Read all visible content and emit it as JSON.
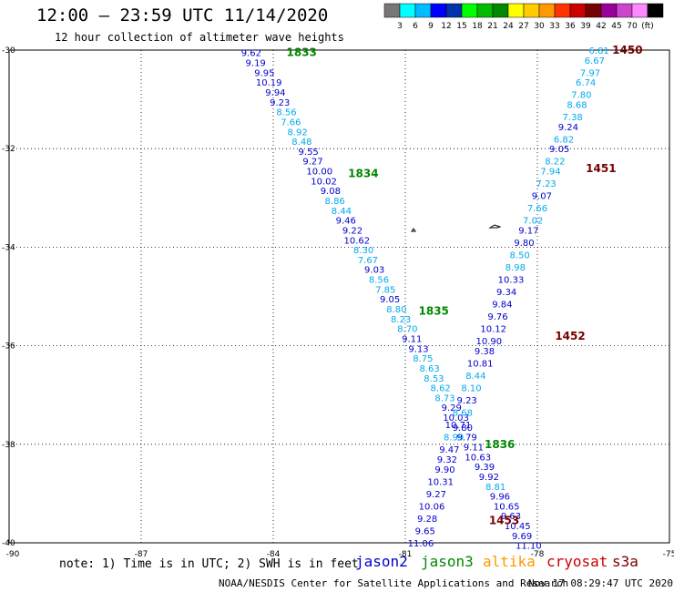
{
  "header": {
    "title": "12:00 — 23:59 UTC 11/14/2020",
    "subtitle": "12 hour collection of altimeter wave heights"
  },
  "legend": {
    "colors": [
      "#777777",
      "#00ffff",
      "#00bbff",
      "#0000ff",
      "#0033aa",
      "#00ff00",
      "#00bb00",
      "#008800",
      "#ffff00",
      "#ffcc00",
      "#ff9900",
      "#ff3300",
      "#cc0000",
      "#770000",
      "#990099",
      "#cc44cc",
      "#ff88ff",
      "#000000"
    ],
    "labels": [
      "3",
      "6",
      "9",
      "12",
      "15",
      "18",
      "21",
      "24",
      "27",
      "30",
      "33",
      "36",
      "39",
      "42",
      "45",
      "70",
      "(ft)"
    ]
  },
  "footer": {
    "note": "note:  1) Time is in UTC;  2) SWH is in feet",
    "satellites": [
      {
        "name": "jason2",
        "color": "#0000cc"
      },
      {
        "name": "jason3",
        "color": "#008800"
      },
      {
        "name": "altika",
        "color": "#ff9900"
      },
      {
        "name": "cryosat",
        "color": "#cc0000"
      },
      {
        "name": "s3a",
        "color": "#770000"
      }
    ],
    "credit": "NOAA/NESDIS Center for Satellite Applications and Research",
    "timestamp": "Nov 17 08:29:47 UTC 2020"
  },
  "chart_data": {
    "type": "scatter",
    "xlim": [
      -90,
      -75
    ],
    "ylim": [
      -40,
      -30
    ],
    "x_ticks": [
      -90,
      -87,
      -84,
      -81,
      -78,
      -75
    ],
    "y_ticks": [
      -30,
      -32,
      -34,
      -36,
      -38,
      -40
    ],
    "grid": true,
    "labels": [
      {
        "text": "1833",
        "x": -83.7,
        "y": -30.05,
        "color": "#008800"
      },
      {
        "text": "1834",
        "x": -82.3,
        "y": -32.5,
        "color": "#008800"
      },
      {
        "text": "1835",
        "x": -80.7,
        "y": -35.3,
        "color": "#008800"
      },
      {
        "text": "1836",
        "x": -79.2,
        "y": -38.0,
        "color": "#008800"
      },
      {
        "text": "1450",
        "x": -76.3,
        "y": -30.0,
        "color": "#770000"
      },
      {
        "text": "1451",
        "x": -76.9,
        "y": -32.4,
        "color": "#770000"
      },
      {
        "text": "1452",
        "x": -77.6,
        "y": -35.8,
        "color": "#770000"
      },
      {
        "text": "1453",
        "x": -79.1,
        "y": -39.55,
        "color": "#770000"
      }
    ],
    "series": [
      {
        "name": "jason3",
        "points": [
          {
            "x": -84.5,
            "y": -30.05,
            "v": 9.62,
            "c": "#0000cc"
          },
          {
            "x": -84.4,
            "y": -30.25,
            "v": 9.19,
            "c": "#0000cc"
          },
          {
            "x": -84.2,
            "y": -30.45,
            "v": 9.95,
            "c": "#0000cc"
          },
          {
            "x": -84.1,
            "y": -30.65,
            "v": 10.19,
            "c": "#0000cc"
          },
          {
            "x": -83.95,
            "y": -30.85,
            "v": 9.94,
            "c": "#0000cc"
          },
          {
            "x": -83.85,
            "y": -31.05,
            "v": 9.23,
            "c": "#0000cc"
          },
          {
            "x": -83.7,
            "y": -31.25,
            "v": 8.56,
            "c": "#00aaee"
          },
          {
            "x": -83.6,
            "y": -31.45,
            "v": 7.66,
            "c": "#00aaee"
          },
          {
            "x": -83.45,
            "y": -31.65,
            "v": 8.92,
            "c": "#00aaee"
          },
          {
            "x": -83.35,
            "y": -31.85,
            "v": 8.48,
            "c": "#00aaee"
          },
          {
            "x": -83.2,
            "y": -32.05,
            "v": 9.55,
            "c": "#0000cc"
          },
          {
            "x": -83.1,
            "y": -32.25,
            "v": 9.27,
            "c": "#0000cc"
          },
          {
            "x": -82.95,
            "y": -32.45,
            "v": 10.0,
            "c": "#0000cc"
          },
          {
            "x": -82.85,
            "y": -32.65,
            "v": 10.02,
            "c": "#0000cc"
          },
          {
            "x": -82.7,
            "y": -32.85,
            "v": 9.08,
            "c": "#0000cc"
          },
          {
            "x": -82.6,
            "y": -33.05,
            "v": 8.86,
            "c": "#00aaee"
          },
          {
            "x": -82.45,
            "y": -33.25,
            "v": 8.44,
            "c": "#00aaee"
          },
          {
            "x": -82.35,
            "y": -33.45,
            "v": 9.46,
            "c": "#0000cc"
          },
          {
            "x": -82.2,
            "y": -33.65,
            "v": 9.22,
            "c": "#0000cc"
          },
          {
            "x": -82.1,
            "y": -33.85,
            "v": 10.62,
            "c": "#0000cc"
          },
          {
            "x": -81.95,
            "y": -34.05,
            "v": 8.3,
            "c": "#00aaee"
          },
          {
            "x": -81.85,
            "y": -34.25,
            "v": 7.67,
            "c": "#00aaee"
          },
          {
            "x": -81.7,
            "y": -34.45,
            "v": 9.03,
            "c": "#0000cc"
          },
          {
            "x": -81.6,
            "y": -34.65,
            "v": 8.56,
            "c": "#00aaee"
          },
          {
            "x": -81.45,
            "y": -34.85,
            "v": 7.85,
            "c": "#00aaee"
          },
          {
            "x": -81.35,
            "y": -35.05,
            "v": 9.05,
            "c": "#0000cc"
          },
          {
            "x": -81.2,
            "y": -35.25,
            "v": 8.8,
            "c": "#00aaee"
          },
          {
            "x": -81.1,
            "y": -35.45,
            "v": 8.23,
            "c": "#00aaee"
          },
          {
            "x": -80.95,
            "y": -35.65,
            "v": 8.7,
            "c": "#00aaee"
          },
          {
            "x": -80.85,
            "y": -35.85,
            "v": 9.11,
            "c": "#0000cc"
          },
          {
            "x": -80.7,
            "y": -36.05,
            "v": 9.13,
            "c": "#0000cc"
          },
          {
            "x": -80.6,
            "y": -36.25,
            "v": 8.75,
            "c": "#00aaee"
          },
          {
            "x": -80.45,
            "y": -36.45,
            "v": 8.63,
            "c": "#00aaee"
          },
          {
            "x": -80.35,
            "y": -36.65,
            "v": 8.53,
            "c": "#00aaee"
          },
          {
            "x": -80.2,
            "y": -36.85,
            "v": 8.62,
            "c": "#00aaee"
          },
          {
            "x": -80.1,
            "y": -37.05,
            "v": 8.73,
            "c": "#00aaee"
          },
          {
            "x": -79.95,
            "y": -37.25,
            "v": 9.29,
            "c": "#0000cc"
          },
          {
            "x": -79.85,
            "y": -37.45,
            "v": 10.03,
            "c": "#0000cc"
          },
          {
            "x": -79.7,
            "y": -37.65,
            "v": 9.8,
            "c": "#0000cc"
          },
          {
            "x": -79.6,
            "y": -37.85,
            "v": 9.79,
            "c": "#0000cc"
          },
          {
            "x": -79.45,
            "y": -38.05,
            "v": 9.11,
            "c": "#0000cc"
          },
          {
            "x": -79.35,
            "y": -38.25,
            "v": 10.63,
            "c": "#0000cc"
          },
          {
            "x": -79.2,
            "y": -38.45,
            "v": 9.39,
            "c": "#0000cc"
          },
          {
            "x": -79.1,
            "y": -38.65,
            "v": 9.92,
            "c": "#0000cc"
          },
          {
            "x": -78.95,
            "y": -38.85,
            "v": 8.81,
            "c": "#00aaee"
          },
          {
            "x": -78.85,
            "y": -39.05,
            "v": 9.96,
            "c": "#0000cc"
          },
          {
            "x": -78.7,
            "y": -39.25,
            "v": 10.65,
            "c": "#0000cc"
          },
          {
            "x": -78.6,
            "y": -39.45,
            "v": 9.63,
            "c": "#0000cc"
          },
          {
            "x": -78.45,
            "y": -39.65,
            "v": 10.45,
            "c": "#0000cc"
          },
          {
            "x": -78.35,
            "y": -39.85,
            "v": 9.69,
            "c": "#0000cc"
          },
          {
            "x": -78.2,
            "y": -40.05,
            "v": 11.1,
            "c": "#0000cc"
          }
        ]
      },
      {
        "name": "s3a",
        "points": [
          {
            "x": -76.6,
            "y": -30.0,
            "v": 6.81,
            "c": "#00aaee"
          },
          {
            "x": -76.7,
            "y": -30.2,
            "v": 6.67,
            "c": "#00aaee"
          },
          {
            "x": -76.8,
            "y": -30.45,
            "v": 7.97,
            "c": "#00aaee"
          },
          {
            "x": -76.9,
            "y": -30.65,
            "v": 6.74,
            "c": "#00aaee"
          },
          {
            "x": -77.0,
            "y": -30.9,
            "v": 7.8,
            "c": "#00aaee"
          },
          {
            "x": -77.1,
            "y": -31.1,
            "v": 8.68,
            "c": "#00aaee"
          },
          {
            "x": -77.2,
            "y": -31.35,
            "v": 7.38,
            "c": "#00aaee"
          },
          {
            "x": -77.3,
            "y": -31.55,
            "v": 9.24,
            "c": "#0000cc"
          },
          {
            "x": -77.4,
            "y": -31.8,
            "v": 6.82,
            "c": "#00aaee"
          },
          {
            "x": -77.5,
            "y": -32.0,
            "v": 9.05,
            "c": "#0000cc"
          },
          {
            "x": -77.6,
            "y": -32.25,
            "v": 8.22,
            "c": "#00aaee"
          },
          {
            "x": -77.7,
            "y": -32.45,
            "v": 7.94,
            "c": "#00aaee"
          },
          {
            "x": -77.8,
            "y": -32.7,
            "v": 7.23,
            "c": "#00aaee"
          },
          {
            "x": -77.9,
            "y": -32.95,
            "v": 9.07,
            "c": "#0000cc"
          },
          {
            "x": -78.0,
            "y": -33.2,
            "v": 7.66,
            "c": "#00aaee"
          },
          {
            "x": -78.1,
            "y": -33.45,
            "v": 7.02,
            "c": "#00aaee"
          },
          {
            "x": -78.2,
            "y": -33.65,
            "v": 9.17,
            "c": "#0000cc"
          },
          {
            "x": -78.3,
            "y": -33.9,
            "v": 9.8,
            "c": "#0000cc"
          },
          {
            "x": -78.4,
            "y": -34.15,
            "v": 8.5,
            "c": "#00aaee"
          },
          {
            "x": -78.5,
            "y": -34.4,
            "v": 8.98,
            "c": "#00aaee"
          },
          {
            "x": -78.6,
            "y": -34.65,
            "v": 10.33,
            "c": "#0000cc"
          },
          {
            "x": -78.7,
            "y": -34.9,
            "v": 9.34,
            "c": "#0000cc"
          },
          {
            "x": -78.8,
            "y": -35.15,
            "v": 9.84,
            "c": "#0000cc"
          },
          {
            "x": -78.9,
            "y": -35.4,
            "v": 9.76,
            "c": "#0000cc"
          },
          {
            "x": -79.0,
            "y": -35.65,
            "v": 10.12,
            "c": "#0000cc"
          },
          {
            "x": -79.1,
            "y": -35.9,
            "v": 10.9,
            "c": "#0000cc"
          },
          {
            "x": -79.2,
            "y": -36.1,
            "v": 9.38,
            "c": "#0000cc"
          },
          {
            "x": -79.3,
            "y": -36.35,
            "v": 10.81,
            "c": "#0000cc"
          },
          {
            "x": -79.4,
            "y": -36.6,
            "v": 8.44,
            "c": "#00aaee"
          },
          {
            "x": -79.5,
            "y": -36.85,
            "v": 8.1,
            "c": "#00aaee"
          },
          {
            "x": -79.6,
            "y": -37.1,
            "v": 9.23,
            "c": "#0000cc"
          },
          {
            "x": -79.7,
            "y": -37.35,
            "v": 8.68,
            "c": "#00aaee"
          },
          {
            "x": -79.8,
            "y": -37.6,
            "v": 10.71,
            "c": "#0000cc"
          },
          {
            "x": -79.9,
            "y": -37.85,
            "v": 8.99,
            "c": "#00aaee"
          },
          {
            "x": -80.0,
            "y": -38.1,
            "v": 9.47,
            "c": "#0000cc"
          },
          {
            "x": -80.05,
            "y": -38.3,
            "v": 9.32,
            "c": "#0000cc"
          },
          {
            "x": -80.1,
            "y": -38.5,
            "v": 9.9,
            "c": "#0000cc"
          },
          {
            "x": -80.2,
            "y": -38.75,
            "v": 10.31,
            "c": "#0000cc"
          },
          {
            "x": -80.3,
            "y": -39.0,
            "v": 9.27,
            "c": "#0000cc"
          },
          {
            "x": -80.4,
            "y": -39.25,
            "v": 10.06,
            "c": "#0000cc"
          },
          {
            "x": -80.5,
            "y": -39.5,
            "v": 9.28,
            "c": "#0000cc"
          },
          {
            "x": -80.55,
            "y": -39.75,
            "v": 9.65,
            "c": "#0000cc"
          },
          {
            "x": -80.65,
            "y": -40.0,
            "v": 11.06,
            "c": "#0000cc"
          }
        ]
      }
    ]
  }
}
